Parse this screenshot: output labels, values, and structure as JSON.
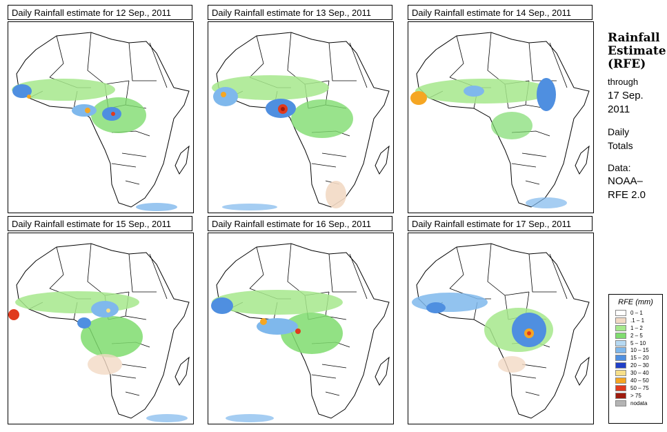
{
  "panels": [
    {
      "title": "Daily Rainfall estimate for  12 Sep., 2011"
    },
    {
      "title": "Daily Rainfall estimate for  13 Sep., 2011"
    },
    {
      "title": "Daily Rainfall estimate for  14 Sep., 2011"
    },
    {
      "title": "Daily Rainfall estimate for  15 Sep., 2011"
    },
    {
      "title": "Daily Rainfall estimate for  16 Sep., 2011"
    },
    {
      "title": "Daily Rainfall estimate for  17 Sep., 2011"
    }
  ],
  "info": {
    "heading_line1": "Rainfall",
    "heading_line2": "Estimate",
    "heading_line3": "(RFE)",
    "through": "through",
    "end_date_line1": "17 Sep.",
    "end_date_line2": "2011",
    "totals_line1": "Daily",
    "totals_line2": "Totals",
    "data_label": "Data:",
    "data_source_line1": "NOAA–",
    "data_source_line2": "RFE 2.0"
  },
  "legend": {
    "title": "RFE (mm)",
    "classes": [
      {
        "label": "0 – 1",
        "color": "#ffffff"
      },
      {
        "label": ".1 – 1",
        "color": "#f2d9c4"
      },
      {
        "label": "1 – 2",
        "color": "#a6e88c"
      },
      {
        "label": "2 – 5",
        "color": "#7fdc6f"
      },
      {
        "label": "5 – 10",
        "color": "#b6d9f2"
      },
      {
        "label": "10 – 15",
        "color": "#7fb8ec"
      },
      {
        "label": "15 – 20",
        "color": "#4f8fe0"
      },
      {
        "label": "20 – 30",
        "color": "#1f3fc8"
      },
      {
        "label": "30 – 40",
        "color": "#f7e08a"
      },
      {
        "label": "40 – 50",
        "color": "#f5a623"
      },
      {
        "label": "50 – 75",
        "color": "#e03a1e"
      },
      {
        "label": "> 75",
        "color": "#9e1b0e"
      },
      {
        "label": "nodata",
        "color": "#b4b4b4"
      }
    ]
  }
}
